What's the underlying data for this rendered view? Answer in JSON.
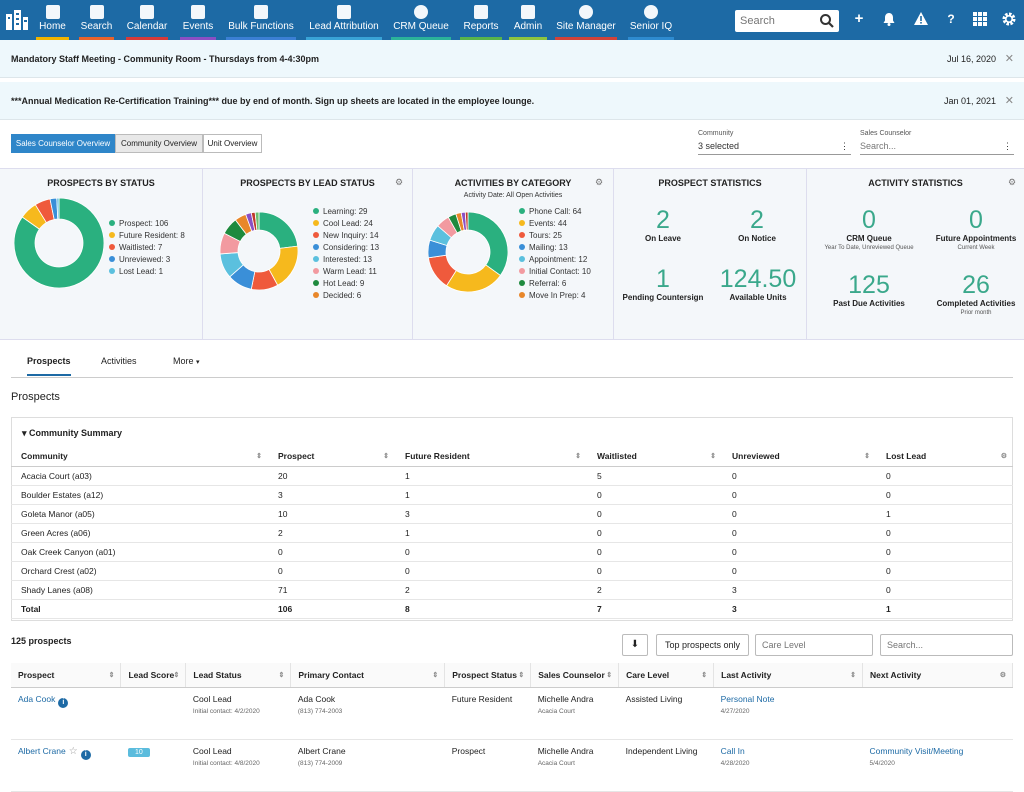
{
  "nav": {
    "items": [
      {
        "label": "Home",
        "icon": "home-icon",
        "color": "#f0b400"
      },
      {
        "label": "Search",
        "icon": "search-icon",
        "color": "#e8632b"
      },
      {
        "label": "Calendar",
        "icon": "calendar-icon",
        "color": "#d63a3a"
      },
      {
        "label": "Events",
        "icon": "users-icon",
        "color": "#8a4fc4"
      },
      {
        "label": "Bulk Functions",
        "icon": "layers-icon",
        "color": "#3b7fd4"
      },
      {
        "label": "Lead Attribution",
        "icon": "shuffle-icon",
        "color": "#39a3d6"
      },
      {
        "label": "CRM Queue",
        "icon": "queue-icon",
        "color": "#2bb39a"
      },
      {
        "label": "Reports",
        "icon": "document-icon",
        "color": "#58b44b"
      },
      {
        "label": "Admin",
        "icon": "wrench-icon",
        "color": "#8cc440"
      },
      {
        "label": "Site Manager",
        "icon": "globe-icon",
        "color": "#d0423a"
      },
      {
        "label": "Senior IQ",
        "icon": "globe-icon",
        "color": "#2e8bd0"
      }
    ],
    "search_placeholder": "Search"
  },
  "banners": [
    {
      "message": "Mandatory Staff Meeting - Community Room - Thursdays from 4-4:30pm",
      "date": "Jul 16, 2020"
    },
    {
      "message": "***Annual Medication Re-Certification Training*** due by end of month. Sign up sheets are located in the employee lounge.",
      "date": "Jan 01, 2021"
    }
  ],
  "view_tabs": [
    "Sales Counselor Overview",
    "Community Overview",
    "Unit Overview"
  ],
  "filters": {
    "community_label": "Community",
    "community_value": "3 selected",
    "counselor_label": "Sales Counselor",
    "counselor_placeholder": "Search..."
  },
  "panels": {
    "status": {
      "title": "PROSPECTS BY STATUS",
      "items": [
        {
          "label": "Prospect: 106",
          "value": 106,
          "color": "#2ab07f"
        },
        {
          "label": "Future Resident: 8",
          "value": 8,
          "color": "#f6b91d"
        },
        {
          "label": "Waitlisted: 7",
          "value": 7,
          "color": "#ef5a3c"
        },
        {
          "label": "Unreviewed: 3",
          "value": 3,
          "color": "#3a8fd8"
        },
        {
          "label": "Lost Lead: 1",
          "value": 1,
          "color": "#5bc0de"
        }
      ]
    },
    "lead": {
      "title": "PROSPECTS BY LEAD STATUS",
      "items": [
        {
          "label": "Learning: 29",
          "value": 29,
          "color": "#2ab07f"
        },
        {
          "label": "Cool Lead: 24",
          "value": 24,
          "color": "#f6b91d"
        },
        {
          "label": "New Inquiry: 14",
          "value": 14,
          "color": "#ef5a3c"
        },
        {
          "label": "Considering: 13",
          "value": 13,
          "color": "#3a8fd8"
        },
        {
          "label": "Interested: 13",
          "value": 13,
          "color": "#5bc0de"
        },
        {
          "label": "Warm Lead: 11",
          "value": 11,
          "color": "#f29aa0"
        },
        {
          "label": "Hot Lead: 9",
          "value": 9,
          "color": "#1e8a3e"
        },
        {
          "label": "Decided: 6",
          "value": 6,
          "color": "#e8872a"
        },
        {
          "label": "",
          "value": 3,
          "color": "#8a4fc4"
        },
        {
          "label": "",
          "value": 2,
          "color": "#c0392b"
        },
        {
          "label": "",
          "value": 2,
          "color": "#6cc070"
        }
      ]
    },
    "activity": {
      "title": "ACTIVITIES BY CATEGORY",
      "subtitle": "Activity Date: All Open Activities",
      "items": [
        {
          "label": "Phone Call: 64",
          "value": 64,
          "color": "#2ab07f"
        },
        {
          "label": "Events: 44",
          "value": 44,
          "color": "#f6b91d"
        },
        {
          "label": "Tours: 25",
          "value": 25,
          "color": "#ef5a3c"
        },
        {
          "label": "Mailing: 13",
          "value": 13,
          "color": "#3a8fd8"
        },
        {
          "label": "Appointment: 12",
          "value": 12,
          "color": "#5bc0de"
        },
        {
          "label": "Initial Contact: 10",
          "value": 10,
          "color": "#f29aa0"
        },
        {
          "label": "Referral: 6",
          "value": 6,
          "color": "#1e8a3e"
        },
        {
          "label": "Move In Prep: 4",
          "value": 4,
          "color": "#e8872a"
        },
        {
          "label": "",
          "value": 3,
          "color": "#8a4fc4"
        },
        {
          "label": "",
          "value": 2,
          "color": "#c0392b"
        }
      ]
    },
    "prospect_stats": {
      "title": "PROSPECT STATISTICS",
      "stats": [
        {
          "value": "2",
          "label": "On Leave"
        },
        {
          "value": "2",
          "label": "On Notice"
        },
        {
          "value": "1",
          "label": "Pending Countersign"
        },
        {
          "value": "124.50",
          "label": "Available Units"
        }
      ]
    },
    "activity_stats": {
      "title": "ACTIVITY STATISTICS",
      "stats": [
        {
          "value": "0",
          "label": "CRM Queue",
          "sub": "Year To Date, Unreviewed Queue"
        },
        {
          "value": "0",
          "label": "Future Appointments",
          "sub": "Current Week"
        },
        {
          "value": "125",
          "label": "Past Due Activities",
          "sub": ""
        },
        {
          "value": "26",
          "label": "Completed Activities",
          "sub": "Prior month"
        }
      ]
    }
  },
  "tabs": [
    "Prospects",
    "Activities",
    "More"
  ],
  "section_title": "Prospects",
  "summary": {
    "title": "Community Summary",
    "headers": [
      "Community",
      "Prospect",
      "Future Resident",
      "Waitlisted",
      "Unreviewed",
      "Lost Lead"
    ],
    "rows": [
      [
        "Acacia Court (a03)",
        "20",
        "1",
        "5",
        "0",
        "0"
      ],
      [
        "Boulder Estates (a12)",
        "3",
        "1",
        "0",
        "0",
        "0"
      ],
      [
        "Goleta Manor (a05)",
        "10",
        "3",
        "0",
        "0",
        "1"
      ],
      [
        "Green Acres (a06)",
        "2",
        "1",
        "0",
        "0",
        "0"
      ],
      [
        "Oak Creek Canyon (a01)",
        "0",
        "0",
        "0",
        "0",
        "0"
      ],
      [
        "Orchard Crest (a02)",
        "0",
        "0",
        "0",
        "0",
        "0"
      ],
      [
        "Shady Lanes (a08)",
        "71",
        "2",
        "2",
        "3",
        "0"
      ]
    ],
    "total": [
      "Total",
      "106",
      "8",
      "7",
      "3",
      "1"
    ]
  },
  "prospects": {
    "count": "125 prospects",
    "top_button": "Top prospects only",
    "care_placeholder": "Care Level",
    "search_placeholder": "Search...",
    "headers": [
      "Prospect",
      "Lead Score",
      "Lead Status",
      "Primary Contact",
      "Prospect Status",
      "Sales Counselor",
      "Care Level",
      "Last Activity",
      "Next Activity"
    ],
    "rows": [
      {
        "name": "Ada Cook",
        "score": "",
        "lead": "Cool Lead",
        "lead_sub": "Initial contact: 4/2/2020",
        "contact": "Ada Cook",
        "phone": "(813) 774-2003",
        "status": "Future Resident",
        "counselor": "Michelle Andra",
        "community": "Acacia Court",
        "care": "Assisted Living",
        "last": "Personal Note",
        "last_date": "4/27/2020",
        "next": "",
        "next_date": ""
      },
      {
        "name": "Albert Crane",
        "score": "10",
        "lead": "Cool Lead",
        "lead_sub": "Initial contact: 4/8/2020",
        "contact": "Albert Crane",
        "phone": "(813) 774-2009",
        "status": "Prospect",
        "counselor": "Michelle Andra",
        "community": "Acacia Court",
        "care": "Independent Living",
        "last": "Call In",
        "last_date": "4/28/2020",
        "next": "Community Visit/Meeting",
        "next_date": "5/4/2020"
      }
    ]
  }
}
